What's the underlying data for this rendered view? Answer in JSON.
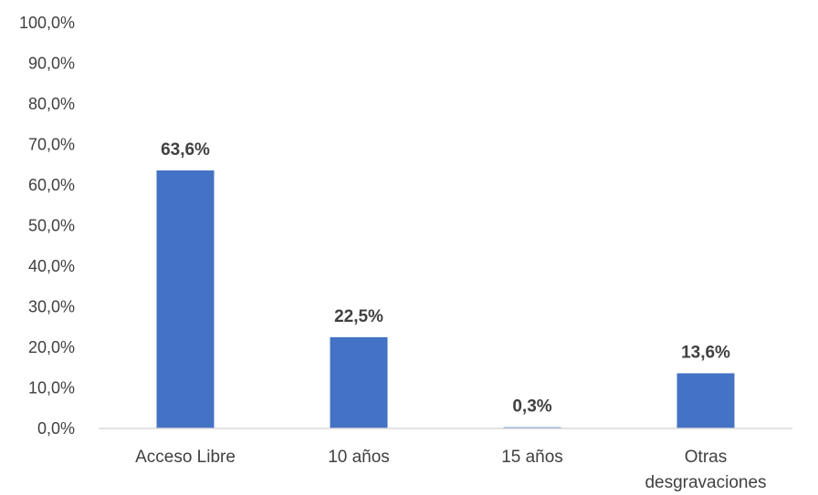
{
  "chart_data": {
    "type": "bar",
    "categories": [
      [
        "Acceso Libre"
      ],
      [
        "10 años"
      ],
      [
        "15 años"
      ],
      [
        "Otras",
        "desgravaciones"
      ]
    ],
    "values": [
      63.6,
      22.5,
      0.3,
      13.6
    ],
    "data_labels": [
      "63,6%",
      "22,5%",
      "0,3%",
      "13,6%"
    ],
    "ylim": [
      0,
      100
    ],
    "y_ticks": [
      0,
      10,
      20,
      30,
      40,
      50,
      60,
      70,
      80,
      90,
      100
    ],
    "y_tick_labels": [
      "0,0%",
      "10,0%",
      "20,0%",
      "30,0%",
      "40,0%",
      "50,0%",
      "60,0%",
      "70,0%",
      "80,0%",
      "90,0%",
      "100,0%"
    ],
    "title": "",
    "xlabel": "",
    "ylabel": "",
    "grid": false,
    "legend": "none",
    "colors": {
      "bar": "#4472C4",
      "axis": "#D9D9D9",
      "text": "#404040"
    }
  }
}
